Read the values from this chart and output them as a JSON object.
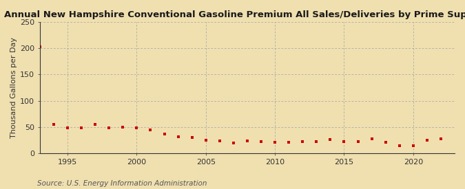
{
  "title": "Annual New Hampshire Conventional Gasoline Premium All Sales/Deliveries by Prime Supplier",
  "ylabel": "Thousand Gallons per Day",
  "source": "Source: U.S. Energy Information Administration",
  "background_color": "#f0e0b0",
  "years": [
    1993,
    1994,
    1995,
    1996,
    1997,
    1998,
    1999,
    2000,
    2001,
    2002,
    2003,
    2004,
    2005,
    2006,
    2007,
    2008,
    2009,
    2010,
    2011,
    2012,
    2013,
    2014,
    2015,
    2016,
    2017,
    2018,
    2019,
    2020,
    2021,
    2022
  ],
  "values": [
    203,
    55,
    48,
    49,
    55,
    48,
    50,
    49,
    44,
    37,
    32,
    30,
    25,
    24,
    20,
    24,
    22,
    21,
    21,
    22,
    22,
    26,
    22,
    22,
    27,
    21,
    15,
    14,
    25,
    28
  ],
  "marker_color": "#cc0000",
  "marker_size": 3.5,
  "xlim": [
    1993,
    2023
  ],
  "ylim": [
    0,
    250
  ],
  "yticks": [
    0,
    50,
    100,
    150,
    200,
    250
  ],
  "xticks": [
    1995,
    2000,
    2005,
    2010,
    2015,
    2020
  ],
  "title_fontsize": 9.5,
  "axis_fontsize": 8,
  "source_fontsize": 7.5,
  "grid_color": "#999999",
  "tick_color": "#333333"
}
